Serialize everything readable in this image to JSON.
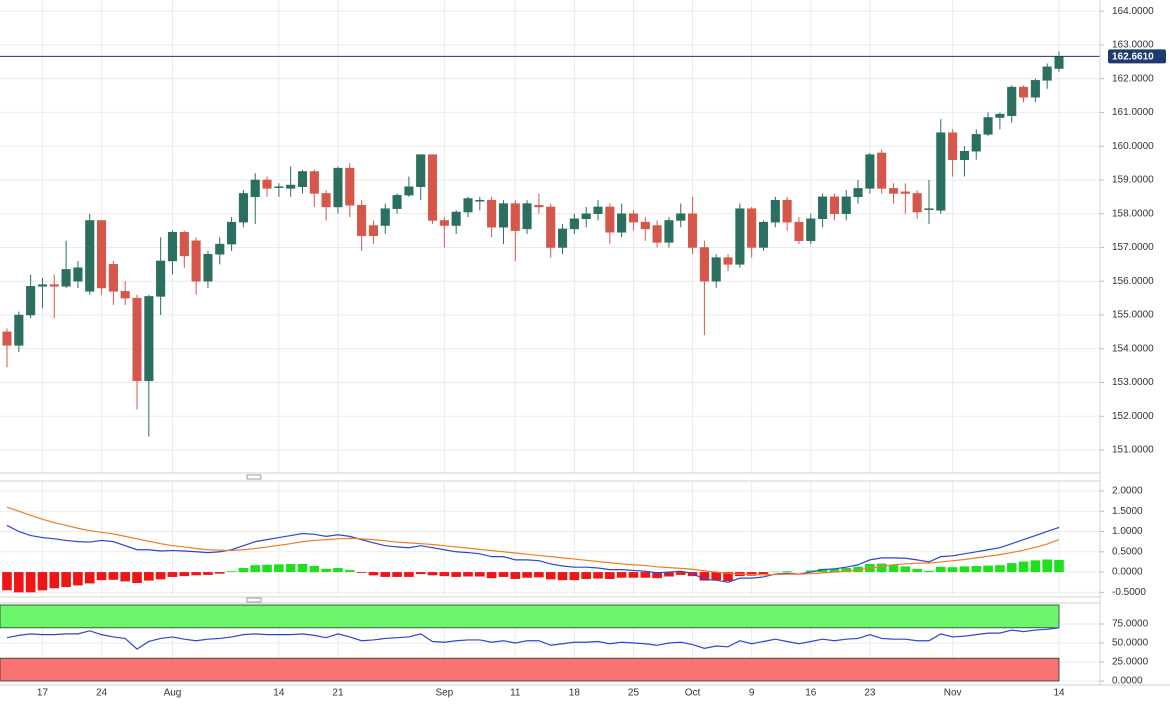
{
  "chart_data": [
    {
      "type": "candlestick",
      "categories": [
        null,
        null,
        null,
        "17",
        null,
        null,
        null,
        null,
        "24",
        null,
        null,
        null,
        null,
        null,
        "Aug",
        null,
        null,
        null,
        null,
        null,
        null,
        null,
        null,
        "14",
        null,
        null,
        null,
        null,
        "21",
        null,
        null,
        null,
        null,
        null,
        null,
        null,
        null,
        "Sep",
        null,
        null,
        null,
        null,
        null,
        "11",
        null,
        null,
        null,
        null,
        "18",
        null,
        null,
        null,
        null,
        "25",
        null,
        null,
        null,
        null,
        "Oct",
        null,
        null,
        null,
        null,
        "9",
        null,
        null,
        null,
        null,
        "16",
        null,
        null,
        null,
        null,
        "23",
        null,
        null,
        null,
        null,
        null,
        null,
        "Nov",
        null,
        null,
        null,
        null,
        null,
        null,
        null,
        null,
        "14"
      ],
      "open": [
        154.5,
        154.1,
        155.0,
        155.85,
        155.9,
        155.85,
        156.0,
        155.7,
        157.8,
        156.5,
        155.7,
        155.5,
        153.05,
        155.55,
        156.6,
        157.45,
        157.2,
        156.0,
        156.8,
        157.1,
        157.75,
        158.5,
        159.0,
        158.8,
        158.75,
        158.8,
        159.25,
        158.6,
        158.2,
        159.35,
        158.25,
        157.65,
        157.65,
        158.15,
        158.55,
        158.8,
        159.75,
        157.8,
        157.65,
        158.05,
        158.4,
        158.4,
        157.6,
        158.3,
        157.55,
        158.25,
        158.2,
        157.0,
        157.55,
        157.85,
        158.0,
        158.2,
        157.45,
        158.0,
        157.75,
        157.65,
        157.15,
        157.8,
        158.0,
        157.0,
        156.0,
        156.7,
        156.5,
        158.15,
        157.0,
        157.75,
        158.4,
        157.75,
        157.2,
        157.85,
        158.5,
        158.0,
        158.5,
        158.75,
        159.8,
        158.75,
        158.65,
        158.6,
        158.15,
        158.1,
        160.4,
        159.6,
        159.85,
        160.35,
        160.85,
        160.9,
        161.75,
        161.45,
        161.95,
        162.3
      ],
      "high": [
        154.6,
        155.1,
        156.2,
        156.1,
        156.2,
        157.2,
        156.6,
        158.0,
        157.8,
        156.6,
        156.0,
        155.6,
        155.6,
        157.3,
        157.5,
        157.5,
        157.3,
        156.9,
        157.3,
        157.9,
        158.7,
        159.2,
        159.1,
        158.9,
        159.4,
        159.3,
        159.3,
        158.7,
        159.4,
        159.5,
        158.4,
        157.8,
        158.3,
        158.6,
        159.1,
        159.75,
        159.75,
        157.9,
        158.1,
        158.5,
        158.5,
        158.5,
        158.4,
        158.4,
        158.4,
        158.6,
        158.3,
        157.7,
        158.0,
        158.2,
        158.4,
        158.3,
        158.3,
        158.1,
        157.9,
        157.8,
        157.9,
        158.3,
        158.5,
        157.2,
        156.8,
        156.8,
        158.3,
        158.2,
        157.8,
        158.5,
        158.5,
        157.9,
        158.0,
        158.6,
        158.6,
        158.7,
        159.0,
        159.8,
        159.9,
        158.9,
        158.9,
        158.7,
        159.0,
        160.8,
        160.5,
        160.0,
        160.5,
        161.0,
        161.0,
        161.8,
        161.8,
        162.0,
        162.45,
        162.8
      ],
      "low": [
        153.45,
        153.9,
        154.9,
        155.2,
        154.9,
        155.8,
        155.8,
        155.6,
        155.6,
        155.3,
        155.3,
        152.2,
        151.4,
        155.0,
        156.2,
        156.4,
        155.6,
        155.8,
        156.5,
        156.9,
        157.6,
        157.7,
        158.5,
        158.5,
        158.5,
        158.6,
        158.2,
        157.8,
        158.0,
        157.9,
        156.9,
        157.1,
        157.4,
        158.0,
        158.5,
        158.4,
        157.7,
        157.0,
        157.4,
        157.9,
        158.1,
        157.3,
        157.1,
        156.6,
        157.4,
        158.0,
        156.7,
        156.8,
        157.4,
        157.6,
        157.8,
        157.1,
        157.3,
        157.5,
        157.2,
        157.0,
        157.0,
        157.6,
        156.8,
        154.4,
        155.8,
        156.3,
        156.4,
        156.7,
        156.9,
        157.6,
        157.5,
        157.1,
        157.1,
        157.6,
        157.8,
        157.8,
        158.3,
        158.6,
        158.6,
        158.3,
        158.0,
        157.85,
        157.7,
        158.0,
        159.1,
        159.1,
        159.6,
        160.3,
        160.5,
        160.7,
        161.3,
        161.3,
        161.7,
        162.2
      ],
      "close": [
        154.1,
        155.0,
        155.85,
        155.9,
        155.85,
        156.35,
        156.4,
        157.8,
        155.8,
        155.7,
        155.5,
        153.05,
        155.55,
        156.6,
        157.45,
        156.75,
        156.0,
        156.8,
        157.1,
        157.75,
        158.6,
        159.0,
        158.75,
        158.8,
        158.85,
        159.25,
        158.6,
        158.2,
        159.35,
        158.25,
        157.35,
        157.35,
        158.15,
        158.55,
        158.8,
        159.75,
        157.8,
        157.65,
        158.05,
        158.45,
        158.4,
        157.6,
        158.3,
        157.5,
        158.3,
        158.2,
        157.0,
        157.55,
        157.85,
        158.0,
        158.2,
        157.45,
        158.0,
        157.75,
        157.55,
        157.15,
        157.8,
        158.0,
        157.0,
        156.0,
        156.7,
        156.5,
        158.15,
        157.0,
        157.75,
        158.4,
        157.75,
        157.2,
        157.85,
        158.5,
        158.0,
        158.5,
        158.75,
        159.75,
        158.75,
        158.6,
        158.6,
        158.05,
        158.15,
        160.4,
        159.6,
        159.85,
        160.35,
        160.85,
        160.95,
        161.75,
        161.45,
        161.95,
        162.35,
        162.661
      ],
      "up_color": "#2a6f5f",
      "down_color": "#d5574b",
      "ylim": [
        150.32,
        164.33
      ],
      "yticks": [
        {
          "value": 151,
          "label": "151.0000"
        },
        {
          "value": 152,
          "label": "152.0000"
        },
        {
          "value": 153,
          "label": "153.0000"
        },
        {
          "value": 154,
          "label": "154.0000"
        },
        {
          "value": 155,
          "label": "155.0000"
        },
        {
          "value": 156,
          "label": "156.0000"
        },
        {
          "value": 157,
          "label": "157.0000"
        },
        {
          "value": 158,
          "label": "158.0000"
        },
        {
          "value": 159,
          "label": "159.0000"
        },
        {
          "value": 160,
          "label": "160.0000"
        },
        {
          "value": 161,
          "label": "161.0000"
        },
        {
          "value": 162,
          "label": "162.0000"
        },
        {
          "value": 163,
          "label": "163.0000"
        },
        {
          "value": 164,
          "label": "164.0000"
        }
      ],
      "grid": true,
      "price_line": {
        "value": 162.661,
        "label": "162.6610",
        "color": "#1f3a6e"
      }
    },
    {
      "type": "macd",
      "lines": [
        {
          "color": "#2b46d6",
          "values": [
            1.15,
            1.0,
            0.9,
            0.85,
            0.82,
            0.78,
            0.75,
            0.74,
            0.78,
            0.75,
            0.65,
            0.55,
            0.55,
            0.52,
            0.53,
            0.52,
            0.5,
            0.48,
            0.5,
            0.55,
            0.65,
            0.75,
            0.8,
            0.85,
            0.9,
            0.95,
            0.93,
            0.88,
            0.92,
            0.88,
            0.8,
            0.72,
            0.65,
            0.62,
            0.6,
            0.65,
            0.6,
            0.55,
            0.5,
            0.48,
            0.45,
            0.38,
            0.38,
            0.3,
            0.3,
            0.28,
            0.2,
            0.15,
            0.12,
            0.12,
            0.1,
            0.06,
            0.06,
            0.04,
            0.02,
            -0.02,
            0.0,
            0.02,
            -0.03,
            -0.18,
            -0.2,
            -0.25,
            -0.15,
            -0.15,
            -0.12,
            -0.05,
            -0.03,
            -0.05,
            0.0,
            0.06,
            0.08,
            0.12,
            0.18,
            0.3,
            0.35,
            0.35,
            0.34,
            0.3,
            0.25,
            0.38,
            0.4,
            0.45,
            0.5,
            0.55,
            0.6,
            0.7,
            0.8,
            0.9,
            1.0,
            1.1
          ]
        },
        {
          "color": "#f07d22",
          "values": [
            1.6,
            1.5,
            1.4,
            1.3,
            1.22,
            1.15,
            1.08,
            1.02,
            0.98,
            0.94,
            0.88,
            0.82,
            0.76,
            0.7,
            0.65,
            0.62,
            0.58,
            0.55,
            0.54,
            0.53,
            0.55,
            0.58,
            0.62,
            0.66,
            0.7,
            0.75,
            0.78,
            0.8,
            0.82,
            0.83,
            0.82,
            0.8,
            0.77,
            0.74,
            0.72,
            0.7,
            0.68,
            0.65,
            0.62,
            0.59,
            0.56,
            0.53,
            0.5,
            0.47,
            0.44,
            0.41,
            0.38,
            0.35,
            0.32,
            0.29,
            0.26,
            0.23,
            0.2,
            0.18,
            0.16,
            0.13,
            0.11,
            0.09,
            0.07,
            0.03,
            0.0,
            -0.03,
            -0.05,
            -0.06,
            -0.07,
            -0.06,
            -0.05,
            -0.05,
            -0.04,
            -0.02,
            0.0,
            0.02,
            0.05,
            0.1,
            0.14,
            0.18,
            0.2,
            0.22,
            0.22,
            0.25,
            0.28,
            0.31,
            0.35,
            0.39,
            0.43,
            0.48,
            0.54,
            0.61,
            0.69,
            0.8
          ]
        }
      ],
      "histogram": {
        "up_color": "#1fe01f",
        "down_color": "#f01515",
        "values": [
          -0.45,
          -0.5,
          -0.5,
          -0.45,
          -0.4,
          -0.37,
          -0.33,
          -0.28,
          -0.2,
          -0.19,
          -0.23,
          -0.27,
          -0.21,
          -0.18,
          -0.12,
          -0.1,
          -0.08,
          -0.07,
          -0.04,
          0.02,
          0.1,
          0.17,
          0.18,
          0.19,
          0.2,
          0.2,
          0.15,
          0.08,
          0.1,
          0.05,
          -0.02,
          -0.08,
          -0.12,
          -0.12,
          -0.12,
          -0.05,
          -0.08,
          -0.1,
          -0.12,
          -0.11,
          -0.11,
          -0.15,
          -0.12,
          -0.17,
          -0.14,
          -0.13,
          -0.18,
          -0.2,
          -0.2,
          -0.17,
          -0.16,
          -0.17,
          -0.14,
          -0.14,
          -0.14,
          -0.15,
          -0.11,
          -0.07,
          -0.1,
          -0.21,
          -0.2,
          -0.22,
          -0.1,
          -0.09,
          -0.05,
          0.01,
          0.02,
          0.0,
          0.04,
          0.08,
          0.08,
          0.1,
          0.13,
          0.2,
          0.21,
          0.17,
          0.14,
          0.08,
          0.03,
          0.13,
          0.12,
          0.14,
          0.15,
          0.16,
          0.17,
          0.22,
          0.26,
          0.29,
          0.31,
          0.3
        ]
      },
      "ylim": [
        -0.59,
        2.22
      ],
      "yticks": [
        {
          "value": -0.5,
          "label": "-0.5000"
        },
        {
          "value": 0,
          "label": "0.0000"
        },
        {
          "value": 0.5,
          "label": "0.5000"
        },
        {
          "value": 1,
          "label": "1.0000"
        },
        {
          "value": 1.5,
          "label": "1.5000"
        },
        {
          "value": 2,
          "label": "2.0000"
        }
      ]
    },
    {
      "type": "rsi",
      "lines": [
        {
          "color": "#2b46d6",
          "values": [
            57,
            60,
            62,
            61,
            61,
            62,
            62,
            66,
            61,
            58,
            56,
            42,
            52,
            56,
            58,
            55,
            53,
            55,
            56,
            58,
            61,
            62,
            61,
            61,
            61,
            62,
            60,
            57,
            62,
            58,
            53,
            54,
            56,
            57,
            58,
            62,
            52,
            51,
            53,
            54,
            54,
            51,
            53,
            50,
            53,
            53,
            47,
            49,
            51,
            51,
            52,
            49,
            51,
            50,
            49,
            47,
            50,
            51,
            48,
            43,
            46,
            45,
            53,
            49,
            52,
            55,
            52,
            49,
            52,
            55,
            53,
            55,
            56,
            61,
            56,
            55,
            55,
            53,
            53,
            62,
            58,
            59,
            61,
            63,
            63,
            67,
            65,
            67,
            68,
            70
          ]
        }
      ],
      "bands": [
        {
          "from": 70,
          "to": 100,
          "color": "#6af56a"
        },
        {
          "from": 0,
          "to": 30,
          "color": "#f77272"
        }
      ],
      "ylim": [
        0,
        100
      ],
      "yticks": [
        {
          "value": 0,
          "label": "0.0000"
        },
        {
          "value": 25,
          "label": "25.0000"
        },
        {
          "value": 50,
          "label": "50.0000"
        },
        {
          "value": 75,
          "label": "75.0000"
        }
      ]
    }
  ]
}
